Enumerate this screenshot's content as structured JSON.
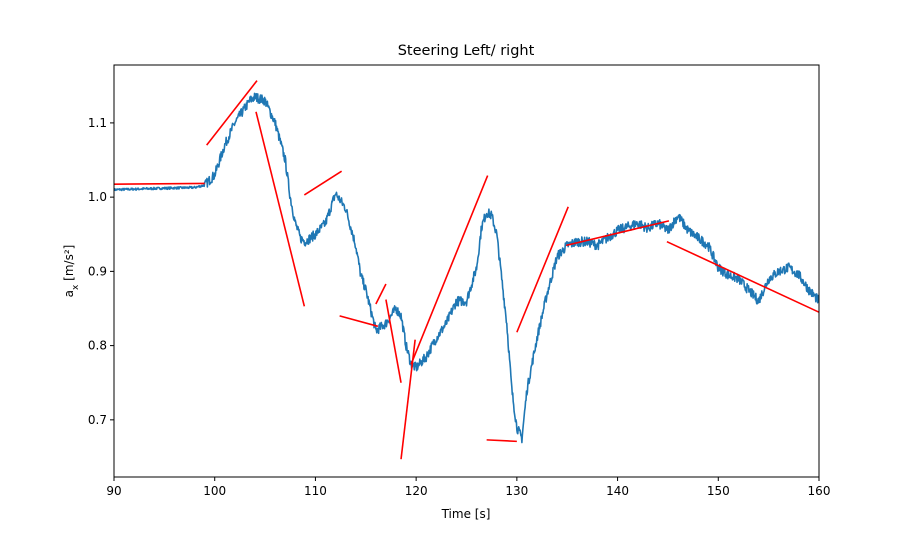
{
  "chart_data": {
    "type": "line",
    "title": "Steering Left/ right",
    "xlabel": "Time [s]",
    "ylabel_main": "a",
    "ylabel_sub": "x",
    "ylabel_unit": " [m/s²]",
    "xlim": [
      90,
      160
    ],
    "ylim": [
      0.623,
      1.178
    ],
    "x_ticks": [
      90,
      100,
      110,
      120,
      130,
      140,
      150,
      160
    ],
    "x_tick_labels": [
      "90",
      "100",
      "110",
      "120",
      "130",
      "140",
      "150",
      "160"
    ],
    "y_ticks": [
      0.7,
      0.8,
      0.9,
      1.0,
      1.1
    ],
    "y_tick_labels": [
      "0.7",
      "0.8",
      "0.9",
      "1.0",
      "1.1"
    ],
    "grid": false,
    "series": [
      {
        "color": "#1f77b4",
        "x": [
          90,
          95,
          98,
          99,
          100,
          101,
          102,
          103,
          103.5,
          104,
          105,
          106,
          107,
          107.5,
          108,
          108.5,
          109,
          110,
          111,
          112,
          113,
          114,
          114.5,
          115,
          116,
          117,
          118,
          118.5,
          119,
          119.5,
          120,
          121,
          122,
          123,
          124,
          125,
          126,
          126.5,
          127,
          127.5,
          128,
          129,
          129.5,
          130,
          130.5,
          131,
          132,
          133,
          134,
          135,
          136,
          137,
          138,
          139,
          140,
          141,
          142,
          143,
          144,
          145,
          146,
          147,
          148,
          149,
          150,
          151,
          152,
          153,
          154,
          155,
          156,
          157,
          158,
          159,
          160
        ],
        "y": [
          1.01,
          1.012,
          1.013,
          1.016,
          1.03,
          1.07,
          1.1,
          1.12,
          1.13,
          1.135,
          1.13,
          1.1,
          1.05,
          1.0,
          0.965,
          0.945,
          0.94,
          0.95,
          0.965,
          1.005,
          0.985,
          0.935,
          0.895,
          0.875,
          0.82,
          0.83,
          0.85,
          0.84,
          0.8,
          0.775,
          0.77,
          0.785,
          0.81,
          0.83,
          0.86,
          0.86,
          0.905,
          0.96,
          0.98,
          0.975,
          0.95,
          0.83,
          0.74,
          0.69,
          0.675,
          0.74,
          0.81,
          0.87,
          0.92,
          0.935,
          0.94,
          0.94,
          0.935,
          0.945,
          0.955,
          0.96,
          0.965,
          0.958,
          0.965,
          0.955,
          0.975,
          0.955,
          0.945,
          0.935,
          0.905,
          0.895,
          0.89,
          0.875,
          0.86,
          0.89,
          0.9,
          0.905,
          0.895,
          0.875,
          0.86
        ]
      }
    ],
    "segments": [
      {
        "color": "#ff0000",
        "x1": 90,
        "y1": 1.0175,
        "x2": 99,
        "y2": 1.0185
      },
      {
        "color": "#ff0000",
        "x1": 99.2,
        "y1": 1.07,
        "x2": 104.2,
        "y2": 1.157
      },
      {
        "color": "#ff0000",
        "x1": 104.1,
        "y1": 1.115,
        "x2": 108.9,
        "y2": 0.853
      },
      {
        "color": "#ff0000",
        "x1": 108.9,
        "y1": 1.003,
        "x2": 112.6,
        "y2": 1.035
      },
      {
        "color": "#ff0000",
        "x1": 112.4,
        "y1": 0.84,
        "x2": 116.2,
        "y2": 0.826
      },
      {
        "color": "#ff0000",
        "x1": 116,
        "y1": 0.856,
        "x2": 117,
        "y2": 0.883
      },
      {
        "color": "#ff0000",
        "x1": 117,
        "y1": 0.862,
        "x2": 118.5,
        "y2": 0.75
      },
      {
        "color": "#ff0000",
        "x1": 118.5,
        "y1": 0.647,
        "x2": 119.9,
        "y2": 0.808
      },
      {
        "color": "#ff0000",
        "x1": 119.5,
        "y1": 0.775,
        "x2": 127.1,
        "y2": 1.029
      },
      {
        "color": "#ff0000",
        "x1": 127,
        "y1": 0.673,
        "x2": 130,
        "y2": 0.671
      },
      {
        "color": "#ff0000",
        "x1": 130,
        "y1": 0.818,
        "x2": 135.1,
        "y2": 0.987
      },
      {
        "color": "#ff0000",
        "x1": 134.9,
        "y1": 0.935,
        "x2": 145.1,
        "y2": 0.968
      },
      {
        "color": "#ff0000",
        "x1": 144.9,
        "y1": 0.94,
        "x2": 160,
        "y2": 0.845
      }
    ]
  }
}
